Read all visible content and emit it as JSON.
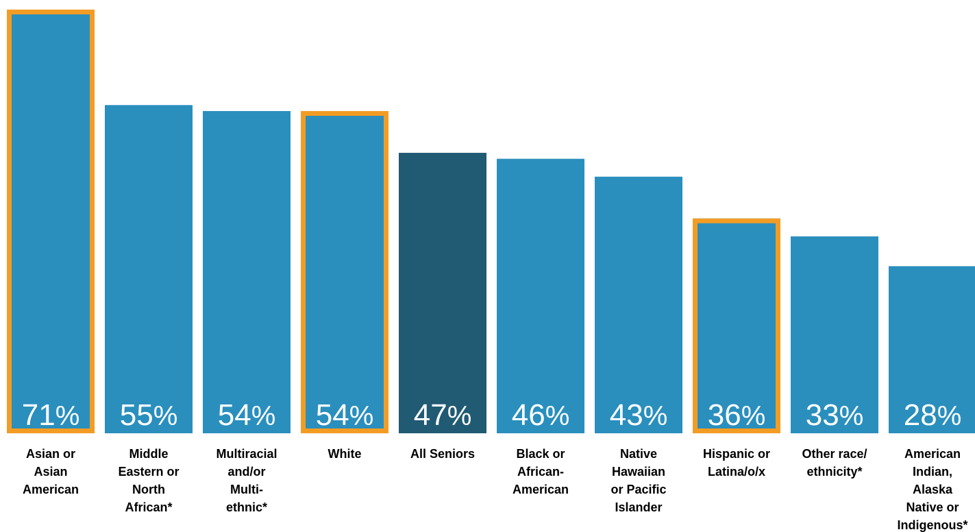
{
  "chart_data": {
    "type": "bar",
    "title": "",
    "xlabel": "",
    "ylabel": "",
    "ylim": [
      0,
      71
    ],
    "grid": false,
    "legend": "none",
    "value_suffix": "%",
    "categories": [
      "Asian or Asian American",
      "Middle Eastern or North African*",
      "Multiracial and/or Multi-ethnic*",
      "White",
      "All Seniors",
      "Black or African-American",
      "Native Hawaiian or Pacific Islander",
      "Hispanic or Latina/o/x",
      "Other race/ ethnicity*",
      "American Indian, Alaska Native or Indigenous*"
    ],
    "category_label_lines": [
      [
        "Asian or",
        "Asian",
        "American"
      ],
      [
        "Middle",
        "Eastern or",
        "North",
        "African*"
      ],
      [
        "Multiracial",
        "and/or",
        "Multi-",
        "ethnic*"
      ],
      [
        "White"
      ],
      [
        "All Seniors"
      ],
      [
        "Black or",
        "African-",
        "American"
      ],
      [
        "Native",
        "Hawaiian",
        "or Pacific",
        "Islander"
      ],
      [
        "Hispanic or",
        "Latina/o/x"
      ],
      [
        "Other race/",
        "ethnicity*"
      ],
      [
        "American",
        "Indian,",
        "Alaska",
        "Native or",
        "Indigenous*"
      ]
    ],
    "values": [
      71,
      55,
      54,
      54,
      47,
      46,
      43,
      36,
      33,
      28
    ],
    "highlighted": [
      true,
      false,
      false,
      true,
      false,
      false,
      false,
      true,
      false,
      false
    ]
  },
  "colors": {
    "bar": "#2a8fbd",
    "bar_total": "#215a73",
    "highlight_outline": "#f39c24",
    "value_text": "#ffffff",
    "label_text": "#000000",
    "background": "#ffffff"
  }
}
